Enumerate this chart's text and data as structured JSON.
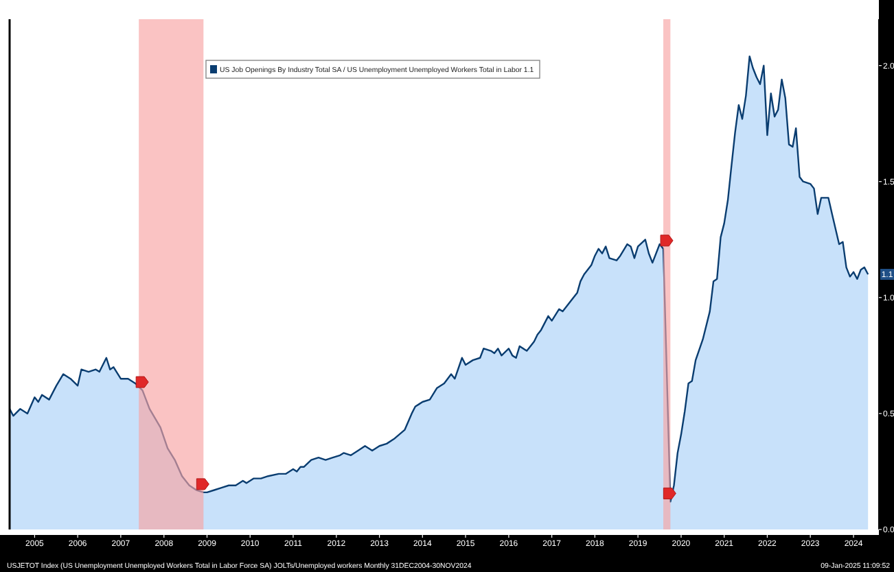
{
  "chart_data": {
    "type": "area",
    "legend": "top",
    "x": [
      "2004-12",
      "2005-01",
      "2005-03",
      "2005-05",
      "2005-07",
      "2005-08",
      "2005-09",
      "2005-11",
      "2006-01",
      "2006-03",
      "2006-05",
      "2006-07",
      "2006-08",
      "2006-10",
      "2006-12",
      "2007-01",
      "2007-03",
      "2007-04",
      "2007-05",
      "2007-07",
      "2007-09",
      "2007-11",
      "2008-01",
      "2008-03",
      "2008-06",
      "2008-08",
      "2008-10",
      "2008-12",
      "2009-02",
      "2009-04",
      "2009-06",
      "2009-07",
      "2009-09",
      "2009-11",
      "2010-01",
      "2010-03",
      "2010-05",
      "2010-06",
      "2010-08",
      "2010-10",
      "2010-12",
      "2011-03",
      "2011-05",
      "2011-07",
      "2011-08",
      "2011-09",
      "2011-10",
      "2011-12",
      "2012-02",
      "2012-04",
      "2012-06",
      "2012-08",
      "2012-09",
      "2012-11",
      "2013-01",
      "2013-03",
      "2013-05",
      "2013-07",
      "2013-09",
      "2013-11",
      "2014-02",
      "2014-04",
      "2014-05",
      "2014-06",
      "2014-07",
      "2014-09",
      "2014-11",
      "2015-01",
      "2015-03",
      "2015-04",
      "2015-06",
      "2015-07",
      "2015-09",
      "2015-11",
      "2015-12",
      "2016-02",
      "2016-03",
      "2016-04",
      "2016-05",
      "2016-07",
      "2016-08",
      "2016-09",
      "2016-10",
      "2016-12",
      "2017-02",
      "2017-03",
      "2017-04",
      "2017-06",
      "2017-07",
      "2017-09",
      "2017-10",
      "2018-01",
      "2018-02",
      "2018-03",
      "2018-04",
      "2018-06",
      "2018-07",
      "2018-08",
      "2018-09",
      "2018-10",
      "2018-11",
      "2019-01",
      "2019-02",
      "2019-04",
      "2019-05",
      "2019-06",
      "2019-07",
      "2019-09",
      "2019-10",
      "2019-11",
      "2020-01",
      "2020-02",
      "2020-04",
      "2020-05",
      "2020-06",
      "2020-07",
      "2020-08",
      "2020-09",
      "2020-10",
      "2020-11",
      "2021-01",
      "2021-03",
      "2021-04",
      "2021-05",
      "2021-06",
      "2021-07",
      "2021-08",
      "2021-09",
      "2021-10",
      "2021-11",
      "2021-12",
      "2022-01",
      "2022-02",
      "2022-03",
      "2022-04",
      "2022-05",
      "2022-06",
      "2022-07",
      "2022-08",
      "2022-09",
      "2022-10",
      "2022-11",
      "2022-12",
      "2023-01",
      "2023-02",
      "2023-03",
      "2023-04",
      "2023-05",
      "2023-07",
      "2023-08",
      "2023-09",
      "2023-10",
      "2023-12",
      "2024-01",
      "2024-03",
      "2024-04",
      "2024-05",
      "2024-06",
      "2024-07",
      "2024-08",
      "2024-09",
      "2024-10",
      "2024-11"
    ],
    "series": [
      {
        "name": "US Job Openings By Industry Total SA / US Unemployment Unemployed Workers Total in Labor 1.1",
        "color": "#c8e1fa",
        "values": [
          0.52,
          0.49,
          0.52,
          0.5,
          0.57,
          0.55,
          0.58,
          0.56,
          0.62,
          0.67,
          0.65,
          0.62,
          0.69,
          0.68,
          0.69,
          0.68,
          0.74,
          0.69,
          0.7,
          0.65,
          0.65,
          0.63,
          0.6,
          0.52,
          0.44,
          0.35,
          0.3,
          0.23,
          0.19,
          0.17,
          0.16,
          0.16,
          0.17,
          0.18,
          0.19,
          0.19,
          0.21,
          0.2,
          0.22,
          0.22,
          0.23,
          0.24,
          0.24,
          0.26,
          0.25,
          0.27,
          0.27,
          0.3,
          0.31,
          0.3,
          0.31,
          0.32,
          0.33,
          0.32,
          0.34,
          0.36,
          0.34,
          0.36,
          0.37,
          0.39,
          0.43,
          0.5,
          0.53,
          0.54,
          0.55,
          0.56,
          0.61,
          0.63,
          0.67,
          0.65,
          0.74,
          0.71,
          0.73,
          0.74,
          0.78,
          0.77,
          0.76,
          0.78,
          0.75,
          0.78,
          0.75,
          0.74,
          0.79,
          0.77,
          0.81,
          0.84,
          0.86,
          0.92,
          0.9,
          0.95,
          0.94,
          1.0,
          1.02,
          1.07,
          1.1,
          1.14,
          1.18,
          1.21,
          1.19,
          1.22,
          1.17,
          1.16,
          1.18,
          1.23,
          1.22,
          1.17,
          1.22,
          1.25,
          1.19,
          1.15,
          1.23,
          1.21,
          0.12,
          0.19,
          0.33,
          0.41,
          0.51,
          0.63,
          0.64,
          0.73,
          0.82,
          0.94,
          1.07,
          1.08,
          1.26,
          1.32,
          1.42,
          1.57,
          1.71,
          1.83,
          1.77,
          1.87,
          2.04,
          1.99,
          1.95,
          1.92,
          2.0,
          1.7,
          1.88,
          1.78,
          1.81,
          1.94,
          1.86,
          1.66,
          1.65,
          1.73,
          1.52,
          1.5,
          1.49,
          1.47,
          1.36,
          1.43,
          1.43,
          1.36,
          1.23,
          1.24,
          1.13,
          1.09,
          1.11,
          1.08,
          1.12,
          1.13,
          1.1
        ]
      }
    ],
    "xlim": [
      "2004-12",
      "2025-02"
    ],
    "xticks": [
      {
        "value": "2005-07",
        "label": "2005"
      },
      {
        "value": "2006-07",
        "label": "2006"
      },
      {
        "value": "2007-07",
        "label": "2007"
      },
      {
        "value": "2008-07",
        "label": "2008"
      },
      {
        "value": "2009-07",
        "label": "2009"
      },
      {
        "value": "2010-07",
        "label": "2010"
      },
      {
        "value": "2011-07",
        "label": "2011"
      },
      {
        "value": "2012-07",
        "label": "2012"
      },
      {
        "value": "2013-07",
        "label": "2013"
      },
      {
        "value": "2014-07",
        "label": "2014"
      },
      {
        "value": "2015-07",
        "label": "2015"
      },
      {
        "value": "2016-07",
        "label": "2016"
      },
      {
        "value": "2017-07",
        "label": "2017"
      },
      {
        "value": "2018-07",
        "label": "2018"
      },
      {
        "value": "2019-07",
        "label": "2019"
      },
      {
        "value": "2020-07",
        "label": "2020"
      },
      {
        "value": "2021-07",
        "label": "2021"
      },
      {
        "value": "2022-07",
        "label": "2022"
      },
      {
        "value": "2023-07",
        "label": "2023"
      },
      {
        "value": "2024-07",
        "label": "2024"
      }
    ],
    "ylim": [
      0,
      2.2
    ],
    "yticks": [
      {
        "value": 0,
        "label": "0.0"
      },
      {
        "value": 0.5,
        "label": "0.5"
      },
      {
        "value": 1,
        "label": "1.0"
      },
      {
        "value": 1.5,
        "label": "1.5"
      },
      {
        "value": 2,
        "label": "2.0"
      }
    ],
    "bands": [
      {
        "axis": "x",
        "from": "2007-12",
        "to": "2009-06",
        "color": "#f7a3a3"
      },
      {
        "axis": "x",
        "from": "2020-02",
        "to": "2020-04",
        "color": "#f7a3a3"
      }
    ],
    "annotations": [
      "USJETOT Index (US Unemployment Unemployed Workers Total in Labor Force SA) JOLTs/Unemployed workers  Monthly 31DEC2004-30NOV2024",
      "09-Jan-2025 11:09:52",
      {
        "text": "1.1",
        "x": "2024-11",
        "y": 1.1
      }
    ]
  }
}
